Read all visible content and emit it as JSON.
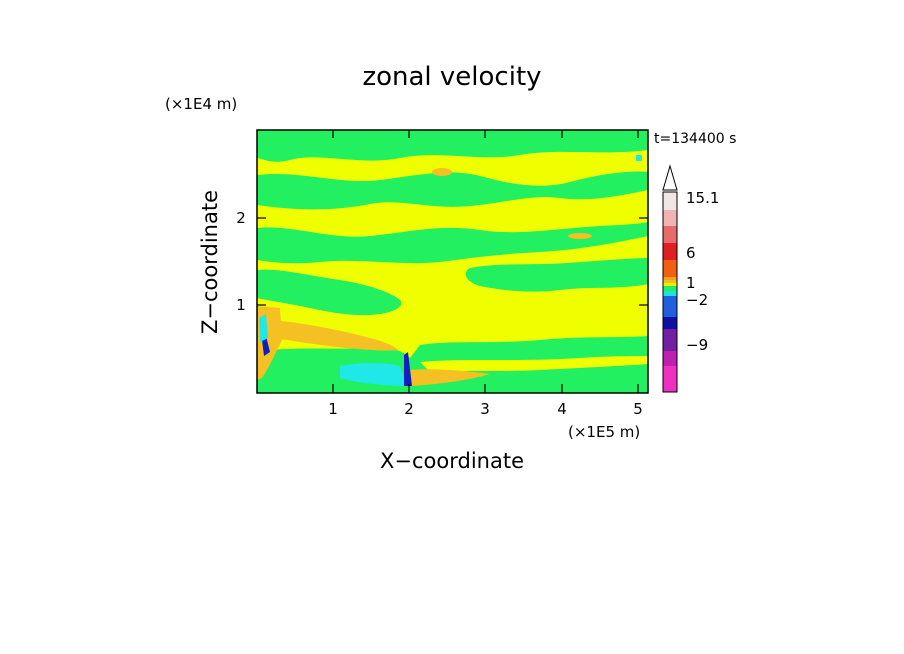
{
  "chart_data": {
    "type": "heatmap",
    "title": "zonal velocity",
    "xlabel": "X−coordinate",
    "ylabel": "Z−coordinate",
    "x_unit": "(×1E5 m)",
    "y_unit": "(×1E4 m)",
    "time_label": "t=134400 s",
    "xlim": [
      0,
      5.15
    ],
    "ylim": [
      0,
      3.0
    ],
    "xticks": [
      "1",
      "2",
      "3",
      "4",
      "5"
    ],
    "yticks": [
      "1",
      "2"
    ],
    "colorbar": {
      "labels": [
        "15.1",
        "6",
        "1",
        "−2",
        "−9"
      ],
      "colors": [
        "#f0e6e6",
        "#f2b3b3",
        "#e86a6a",
        "#e02020",
        "#f06010",
        "#f5a020",
        "#f0c020",
        "#f0f000",
        "#20f060",
        "#20e0e0",
        "#2060e0",
        "#1010a0",
        "#7020a0",
        "#c020b0",
        "#f030c0"
      ]
    },
    "palette": {
      "yellow": "#f0ff00",
      "green": "#22f060",
      "orange": "#f5c024",
      "cyan": "#20e8e8",
      "blue": "#1020c0"
    }
  }
}
